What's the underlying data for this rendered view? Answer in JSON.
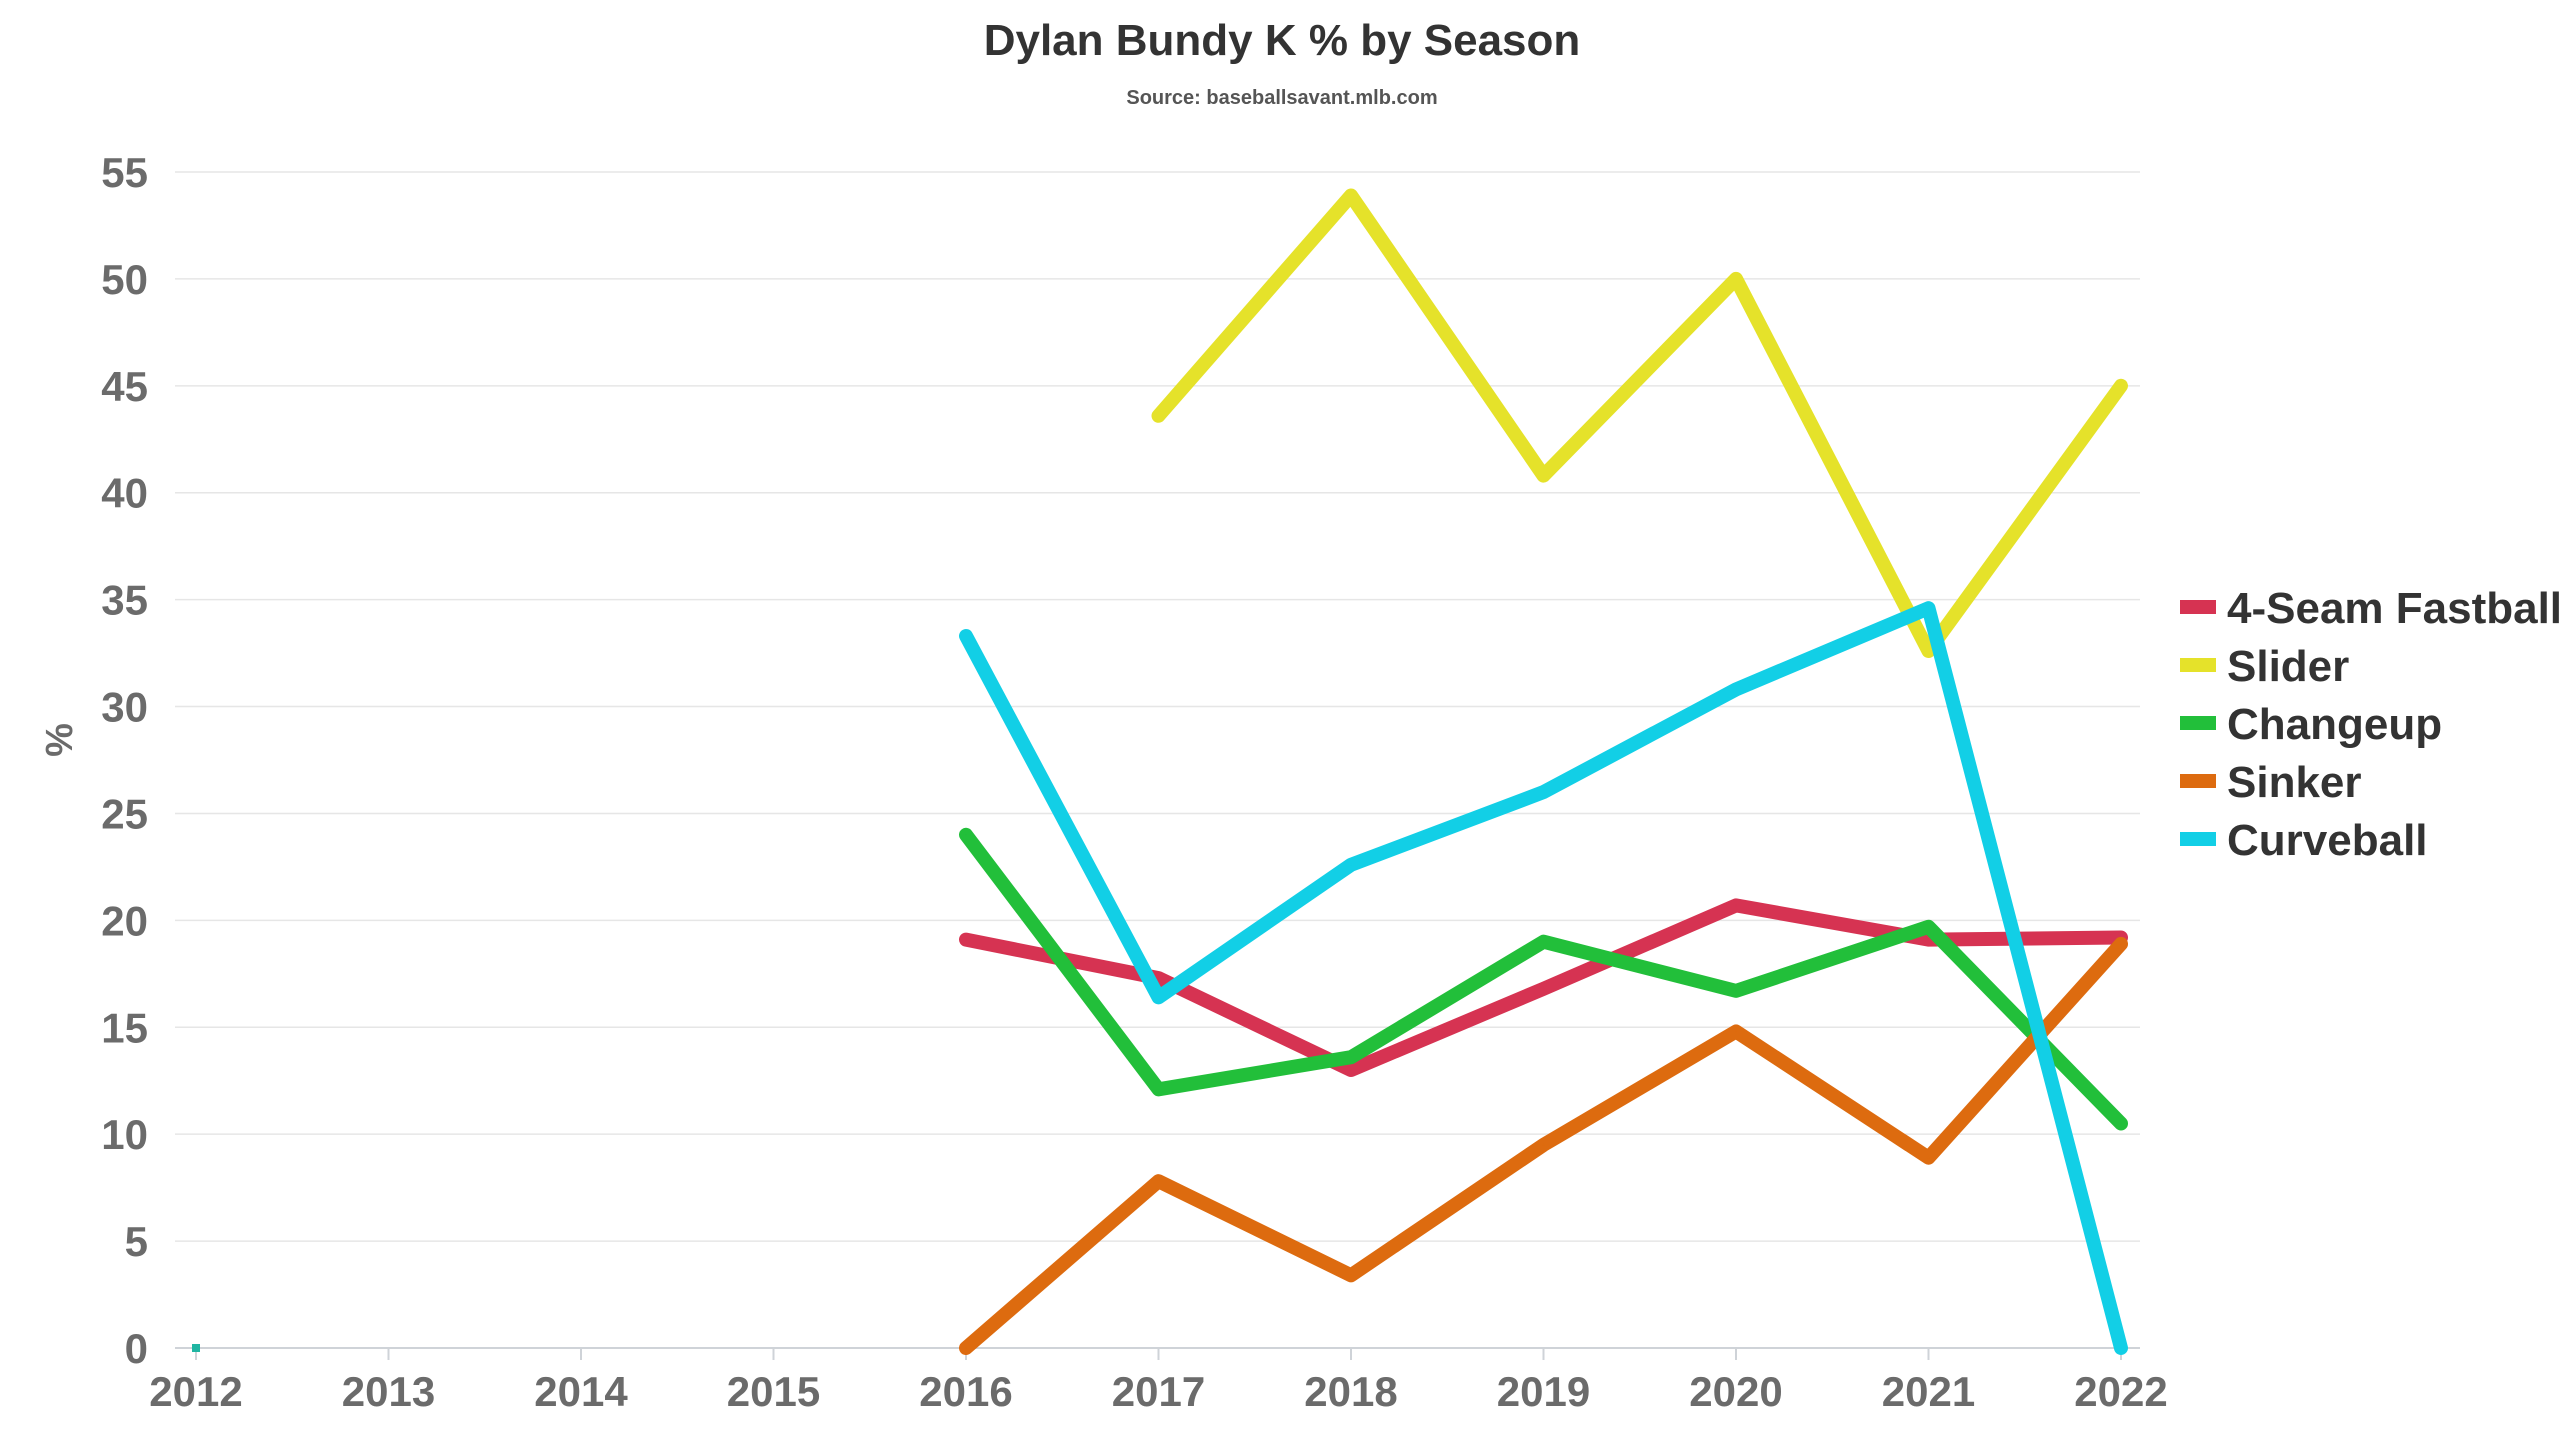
{
  "chart_data": {
    "type": "line",
    "title": "Dylan Bundy K % by Season",
    "subtitle": "Source: baseballsavant.mlb.com",
    "xlabel": "",
    "ylabel": "%",
    "x": [
      "2012",
      "2013",
      "2014",
      "2015",
      "2016",
      "2017",
      "2018",
      "2019",
      "2020",
      "2021",
      "2022"
    ],
    "ylim": [
      0,
      55
    ],
    "yticks": [
      0,
      5,
      10,
      15,
      20,
      25,
      30,
      35,
      40,
      45,
      50,
      55
    ],
    "grid": true,
    "legend_position": "right",
    "series": [
      {
        "name": "4-Seam Fastball",
        "color": "#d63352",
        "values": [
          null,
          null,
          null,
          null,
          19.1,
          17.3,
          13.0,
          16.8,
          20.7,
          19.1,
          19.2
        ]
      },
      {
        "name": "Slider",
        "color": "#e5e22a",
        "values": [
          null,
          null,
          null,
          null,
          null,
          43.6,
          53.9,
          40.8,
          50.0,
          32.6,
          45.0
        ]
      },
      {
        "name": "Changeup",
        "color": "#22bf3a",
        "values": [
          null,
          null,
          null,
          null,
          24.0,
          12.1,
          13.6,
          19.0,
          16.7,
          19.7,
          10.5
        ]
      },
      {
        "name": "Sinker",
        "color": "#dd6b0f",
        "values": [
          null,
          null,
          null,
          null,
          0,
          7.8,
          3.4,
          9.5,
          14.8,
          8.9,
          18.9
        ]
      },
      {
        "name": "Curveball",
        "color": "#12cfe6",
        "values": [
          null,
          null,
          null,
          null,
          33.3,
          16.4,
          22.6,
          26.0,
          30.8,
          34.6,
          0
        ]
      }
    ],
    "marker_note": {
      "x": "2012",
      "value": 0,
      "color": "#1fb5a2"
    }
  }
}
